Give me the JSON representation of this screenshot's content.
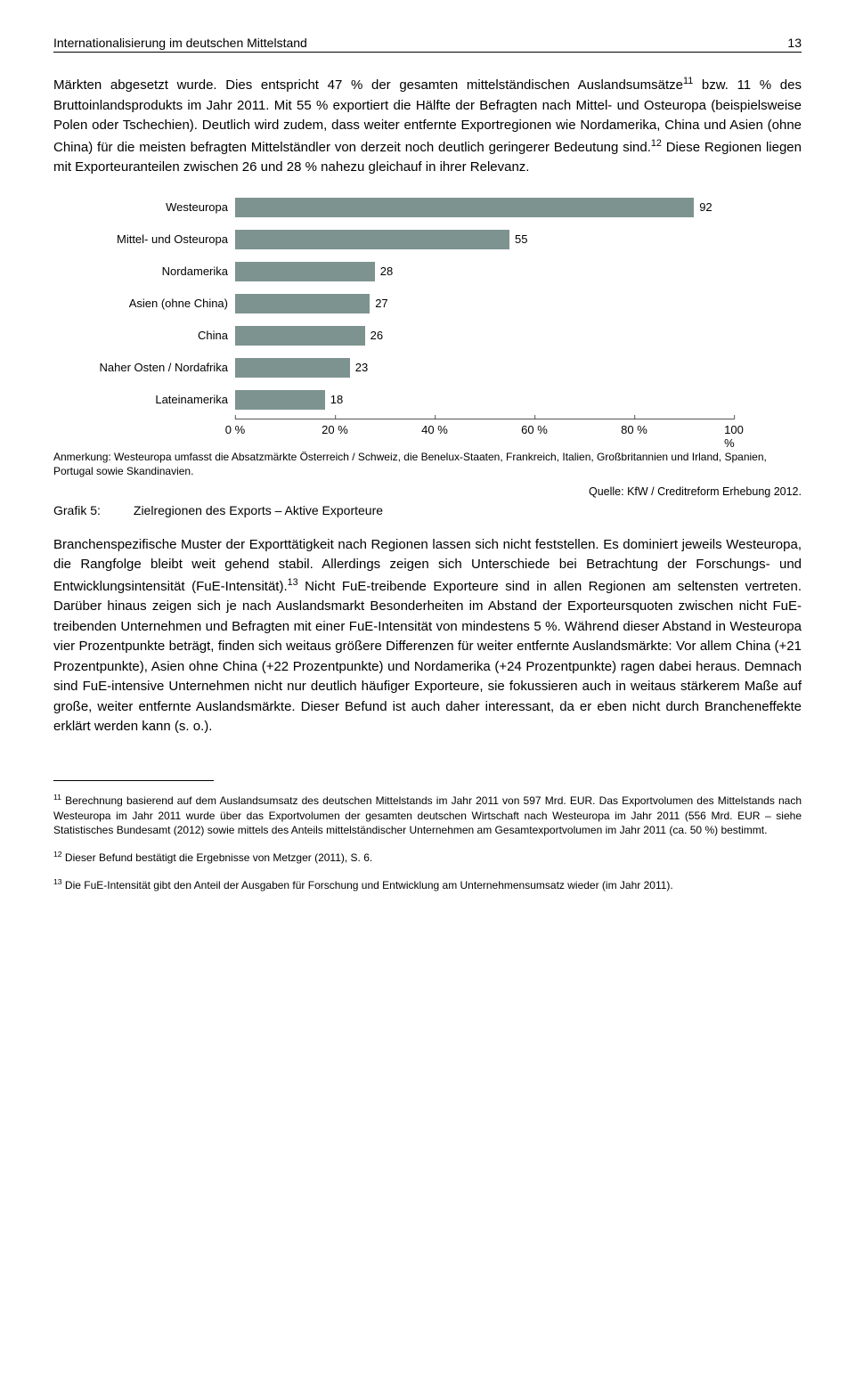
{
  "header": {
    "title": "Internationalisierung im deutschen Mittelstand",
    "page": "13"
  },
  "para1_a": "Märkten abgesetzt wurde. Dies entspricht 47 % der gesamten mittelständischen Auslandsumsätze",
  "para1_b": " bzw. 11 % des Bruttoinlandsprodukts im Jahr 2011. Mit 55 % exportiert die Hälfte der Befragten nach Mittel- und Osteuropa (beispielsweise Polen oder Tschechien). Deutlich wird zudem, dass weiter entfernte Exportregionen wie Nordamerika, China und Asien (ohne China) für die meisten befragten Mittelständler von derzeit noch deutlich geringerer Bedeutung sind.",
  "para1_c": " Diese Regionen liegen mit Exporteuranteilen zwischen 26 und 28 % nahezu gleichauf in ihrer Relevanz.",
  "sup11": "11",
  "sup12": "12",
  "chart": {
    "type": "bar",
    "bar_color": "#7d9390",
    "categories": [
      {
        "label": "Westeuropa",
        "value": 92
      },
      {
        "label": "Mittel- und Osteuropa",
        "value": 55
      },
      {
        "label": "Nordamerika",
        "value": 28
      },
      {
        "label": "Asien (ohne China)",
        "value": 27
      },
      {
        "label": "China",
        "value": 26
      },
      {
        "label": "Naher Osten / Nordafrika",
        "value": 23
      },
      {
        "label": "Lateinamerika",
        "value": 18
      }
    ],
    "xmax": 100,
    "ticks": [
      "0 %",
      "20 %",
      "40 %",
      "60 %",
      "80 %",
      "100 %"
    ]
  },
  "annotation": "Anmerkung: Westeuropa umfasst die Absatzmärkte Österreich / Schweiz, die Benelux-Staaten, Frankreich, Italien, Großbritannien und Irland, Spanien, Portugal sowie Skandinavien.",
  "source": "Quelle: KfW / Creditreform Erhebung 2012.",
  "figure": {
    "label": "Grafik 5:",
    "title": "Zielregionen des Exports – Aktive Exporteure"
  },
  "para2_a": "Branchenspezifische Muster der Exporttätigkeit nach Regionen lassen sich nicht feststellen. Es dominiert jeweils Westeuropa, die Rangfolge bleibt weit gehend stabil. Allerdings zeigen sich Unterschiede bei Betrachtung der Forschungs- und Entwicklungsintensität (FuE-Intensität).",
  "sup13": "13",
  "para2_b": " Nicht FuE-treibende Exporteure sind in allen Regionen am seltensten vertreten. Darüber hinaus zeigen sich je nach Auslandsmarkt Besonderheiten im Abstand der Exporteursquoten zwischen nicht FuE-treibenden Unternehmen und Befragten mit einer FuE-Intensität von mindestens 5 %. Während dieser Abstand in Westeuropa vier Prozentpunkte beträgt, finden sich weitaus größere Differenzen für weiter entfernte Auslandsmärkte: Vor allem China (+21 Prozentpunkte), Asien ohne China (+22 Prozentpunkte) und Nordamerika (+24 Prozentpunkte) ragen dabei heraus. Demnach sind FuE-intensive Unternehmen nicht nur deutlich häufiger Exporteure, sie fokussieren auch in weitaus stärkerem Maße auf große, weiter entfernte Auslandsmärkte. Dieser Befund ist auch daher interessant, da er eben nicht durch Brancheneffekte erklärt werden kann (s. o.).",
  "footnotes": {
    "f11_n": "11",
    "f11": " Berechnung basierend auf dem Auslandsumsatz des deutschen Mittelstands im Jahr 2011 von 597 Mrd. EUR. Das Exportvolumen des Mittelstands nach Westeuropa im Jahr 2011 wurde über das Exportvolumen der gesamten deutschen Wirtschaft nach Westeuropa im Jahr 2011 (556 Mrd. EUR – siehe Statistisches Bundesamt (2012) sowie mittels des Anteils mittelständischer Unternehmen am Gesamtexportvolumen im Jahr 2011 (ca. 50 %) bestimmt.",
    "f12_n": "12",
    "f12": " Dieser Befund bestätigt die Ergebnisse von Metzger (2011), S. 6.",
    "f13_n": "13",
    "f13": " Die FuE-Intensität gibt den Anteil der Ausgaben für Forschung und Entwicklung am Unternehmensumsatz wieder (im Jahr 2011)."
  }
}
